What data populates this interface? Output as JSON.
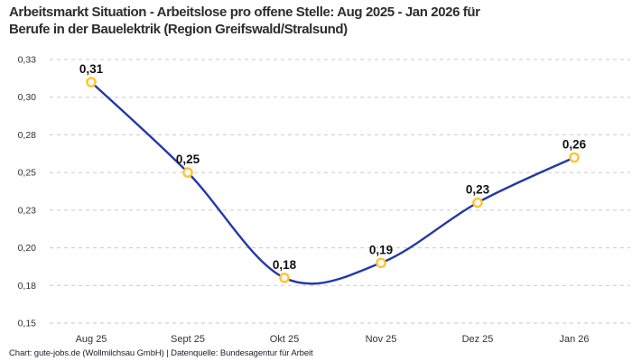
{
  "header": {
    "title_lines": [
      "Arbeitsmarkt Situation - Arbeitslose pro offene Stelle: Aug 2025 - Jan 2026 für",
      "Berufe in der Bauelektrik (Region Greifswald/Stralsund)"
    ]
  },
  "chart_data": {
    "type": "line",
    "title": "Arbeitsmarkt Situation - Arbeitslose pro offene Stelle: Aug 2025 - Jan 2026 für Berufe in der Bauelektrik (Region Greifswald/Stralsund)",
    "categories": [
      "Aug 25",
      "Sept 25",
      "Okt 25",
      "Nov 25",
      "Dez 25",
      "Jan 26"
    ],
    "values": [
      0.31,
      0.25,
      0.18,
      0.19,
      0.23,
      0.26
    ],
    "point_labels": [
      "0,31",
      "0,25",
      "0,18",
      "0,19",
      "0,23",
      "0,26"
    ],
    "xlabel": "",
    "ylabel": "",
    "ylim": [
      0.15,
      0.325
    ],
    "ytick_values": [
      0.15,
      0.175,
      0.2,
      0.225,
      0.25,
      0.275,
      0.3,
      0.325
    ],
    "ytick_labels": [
      "0,15",
      "0,18",
      "0,20",
      "0,23",
      "0,25",
      "0,28",
      "0,30",
      "0,33"
    ],
    "grid": "horizontal-dashed",
    "legend": "none",
    "line_style": "smooth-spline",
    "marker_style": "open-circle",
    "colors": {
      "line": "#2338a8",
      "marker_stroke": "#ffc42e",
      "marker_fill": "#ffffff",
      "grid": "#c9c9c9",
      "tick_text": "#333333",
      "label_text": "#111111",
      "title_text": "#2d2d2d"
    },
    "source_note": "Chart: gute-jobs.de (Wollmilchsau GmbH) | Datenquelle: Bundesagentur für Arbeit"
  }
}
